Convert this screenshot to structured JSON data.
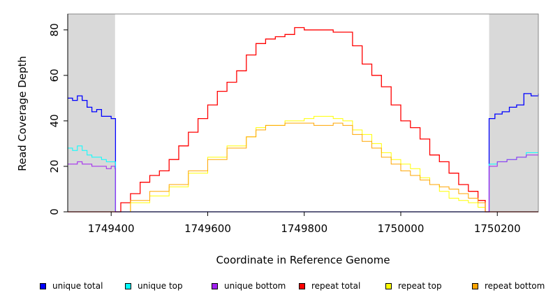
{
  "chart_data": {
    "type": "line",
    "title": "",
    "xlabel": "Coordinate in Reference Genome",
    "ylabel": "Read Coverage Depth",
    "xlim": [
      1749310,
      1750285
    ],
    "ylim": [
      0,
      87
    ],
    "xticks": [
      1749400,
      1749600,
      1749800,
      1750000,
      1750200
    ],
    "xtick_labels": [
      "1749400",
      "1749600",
      "1749800",
      "1750000",
      "1750200"
    ],
    "yticks": [
      0,
      20,
      40,
      60,
      80
    ],
    "ytick_labels": [
      "0",
      "20",
      "40",
      "60",
      "80"
    ],
    "grid": false,
    "legend_position": "bottom",
    "shaded_regions": [
      {
        "x0": 1749310,
        "x1": 1749408,
        "color": "#d9d9d9"
      },
      {
        "x0": 1750183,
        "x1": 1750285,
        "color": "#d9d9d9"
      }
    ],
    "series": [
      {
        "name": "unique total",
        "color": "#0000ff",
        "points": [
          [
            1749310,
            50
          ],
          [
            1749320,
            49
          ],
          [
            1749330,
            51
          ],
          [
            1749340,
            49
          ],
          [
            1749350,
            46
          ],
          [
            1749360,
            44
          ],
          [
            1749370,
            45
          ],
          [
            1749380,
            42
          ],
          [
            1749390,
            42
          ],
          [
            1749400,
            41
          ],
          [
            1749408,
            41
          ],
          [
            1749409,
            0
          ],
          [
            1750182,
            0
          ],
          [
            1750183,
            41
          ],
          [
            1750195,
            43
          ],
          [
            1750210,
            44
          ],
          [
            1750225,
            46
          ],
          [
            1750240,
            47
          ],
          [
            1750255,
            52
          ],
          [
            1750270,
            51
          ],
          [
            1750285,
            52
          ]
        ]
      },
      {
        "name": "unique top",
        "color": "#00ffff",
        "points": [
          [
            1749310,
            28
          ],
          [
            1749320,
            27
          ],
          [
            1749330,
            29
          ],
          [
            1749340,
            27
          ],
          [
            1749350,
            25
          ],
          [
            1749360,
            24
          ],
          [
            1749370,
            24
          ],
          [
            1749380,
            23
          ],
          [
            1749390,
            22
          ],
          [
            1749400,
            22
          ],
          [
            1749408,
            22
          ],
          [
            1749409,
            0
          ],
          [
            1750182,
            0
          ],
          [
            1750183,
            21
          ],
          [
            1750200,
            22
          ],
          [
            1750220,
            23
          ],
          [
            1750240,
            24
          ],
          [
            1750260,
            26
          ],
          [
            1750285,
            28
          ]
        ]
      },
      {
        "name": "unique bottom",
        "color": "#a020f0",
        "points": [
          [
            1749310,
            21
          ],
          [
            1749320,
            21
          ],
          [
            1749330,
            22
          ],
          [
            1749340,
            21
          ],
          [
            1749350,
            21
          ],
          [
            1749360,
            20
          ],
          [
            1749370,
            20
          ],
          [
            1749380,
            20
          ],
          [
            1749390,
            19
          ],
          [
            1749400,
            20
          ],
          [
            1749408,
            19
          ],
          [
            1749409,
            0
          ],
          [
            1750182,
            0
          ],
          [
            1750183,
            20
          ],
          [
            1750200,
            22
          ],
          [
            1750220,
            23
          ],
          [
            1750240,
            24
          ],
          [
            1750260,
            25
          ],
          [
            1750285,
            24
          ]
        ]
      },
      {
        "name": "repeat total",
        "color": "#ff0000",
        "points": [
          [
            1749310,
            0
          ],
          [
            1749408,
            0
          ],
          [
            1749420,
            4
          ],
          [
            1749440,
            8
          ],
          [
            1749460,
            13
          ],
          [
            1749480,
            16
          ],
          [
            1749500,
            18
          ],
          [
            1749520,
            23
          ],
          [
            1749540,
            29
          ],
          [
            1749560,
            35
          ],
          [
            1749580,
            41
          ],
          [
            1749600,
            47
          ],
          [
            1749620,
            53
          ],
          [
            1749640,
            57
          ],
          [
            1749660,
            62
          ],
          [
            1749680,
            69
          ],
          [
            1749700,
            74
          ],
          [
            1749720,
            76
          ],
          [
            1749740,
            77
          ],
          [
            1749760,
            78
          ],
          [
            1749780,
            81
          ],
          [
            1749800,
            80
          ],
          [
            1749820,
            80
          ],
          [
            1749840,
            80
          ],
          [
            1749860,
            79
          ],
          [
            1749880,
            79
          ],
          [
            1749900,
            73
          ],
          [
            1749920,
            65
          ],
          [
            1749940,
            60
          ],
          [
            1749960,
            55
          ],
          [
            1749980,
            47
          ],
          [
            1750000,
            40
          ],
          [
            1750020,
            37
          ],
          [
            1750040,
            32
          ],
          [
            1750060,
            25
          ],
          [
            1750080,
            22
          ],
          [
            1750100,
            17
          ],
          [
            1750120,
            12
          ],
          [
            1750140,
            9
          ],
          [
            1750160,
            5
          ],
          [
            1750175,
            0
          ],
          [
            1750285,
            0
          ]
        ]
      },
      {
        "name": "repeat top",
        "color": "#ffff00",
        "points": [
          [
            1749310,
            0
          ],
          [
            1749408,
            0
          ],
          [
            1749440,
            4
          ],
          [
            1749480,
            7
          ],
          [
            1749520,
            11
          ],
          [
            1749560,
            17
          ],
          [
            1749600,
            24
          ],
          [
            1749640,
            29
          ],
          [
            1749680,
            33
          ],
          [
            1749700,
            37
          ],
          [
            1749720,
            38
          ],
          [
            1749760,
            40
          ],
          [
            1749800,
            41
          ],
          [
            1749820,
            42
          ],
          [
            1749840,
            42
          ],
          [
            1749860,
            41
          ],
          [
            1749880,
            40
          ],
          [
            1749900,
            36
          ],
          [
            1749920,
            34
          ],
          [
            1749940,
            30
          ],
          [
            1749960,
            26
          ],
          [
            1749980,
            23
          ],
          [
            1750000,
            21
          ],
          [
            1750020,
            19
          ],
          [
            1750040,
            15
          ],
          [
            1750060,
            12
          ],
          [
            1750080,
            9
          ],
          [
            1750100,
            6
          ],
          [
            1750120,
            5
          ],
          [
            1750140,
            4
          ],
          [
            1750160,
            2
          ],
          [
            1750175,
            0
          ],
          [
            1750285,
            0
          ]
        ]
      },
      {
        "name": "repeat bottom",
        "color": "#ffa500",
        "points": [
          [
            1749310,
            0
          ],
          [
            1749408,
            0
          ],
          [
            1749440,
            5
          ],
          [
            1749480,
            9
          ],
          [
            1749520,
            12
          ],
          [
            1749560,
            18
          ],
          [
            1749600,
            23
          ],
          [
            1749640,
            28
          ],
          [
            1749680,
            33
          ],
          [
            1749700,
            36
          ],
          [
            1749720,
            38
          ],
          [
            1749760,
            39
          ],
          [
            1749800,
            39
          ],
          [
            1749820,
            38
          ],
          [
            1749840,
            38
          ],
          [
            1749860,
            39
          ],
          [
            1749880,
            38
          ],
          [
            1749900,
            34
          ],
          [
            1749920,
            31
          ],
          [
            1749940,
            28
          ],
          [
            1749960,
            24
          ],
          [
            1749980,
            21
          ],
          [
            1750000,
            18
          ],
          [
            1750020,
            16
          ],
          [
            1750040,
            14
          ],
          [
            1750060,
            12
          ],
          [
            1750080,
            11
          ],
          [
            1750100,
            10
          ],
          [
            1750120,
            8
          ],
          [
            1750140,
            6
          ],
          [
            1750160,
            4
          ],
          [
            1750175,
            0
          ],
          [
            1750285,
            0
          ]
        ]
      }
    ]
  }
}
